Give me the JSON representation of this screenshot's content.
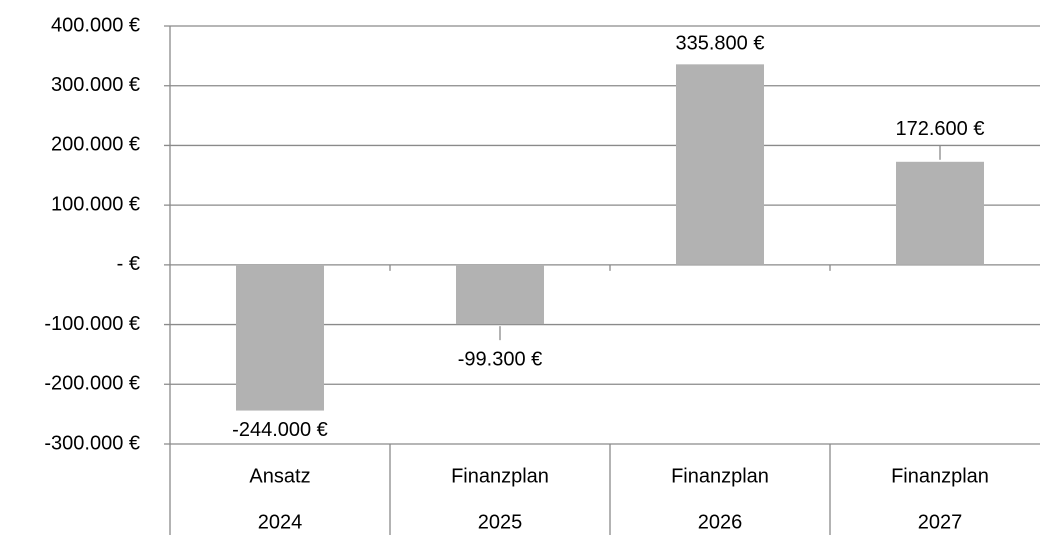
{
  "chart_data": {
    "type": "bar",
    "categories": [
      [
        "Ansatz",
        "2024"
      ],
      [
        "Finanzplan",
        "2025"
      ],
      [
        "Finanzplan",
        "2026"
      ],
      [
        "Finanzplan",
        "2027"
      ]
    ],
    "values": [
      -244000,
      -99300,
      335800,
      172600
    ],
    "value_labels": [
      "-244.000 €",
      "-99.300 €",
      "335.800 €",
      "172.600 €"
    ],
    "color": "#b2b2b2",
    "ylim": [
      -300000,
      400000
    ],
    "yticks": [
      {
        "value": -300000,
        "label": "-300.000 €"
      },
      {
        "value": -200000,
        "label": "-200.000 €"
      },
      {
        "value": -100000,
        "label": "-100.000 €"
      },
      {
        "value": 0,
        "label": "- €"
      },
      {
        "value": 100000,
        "label": "100.000 €"
      },
      {
        "value": 200000,
        "label": "200.000 €"
      },
      {
        "value": 300000,
        "label": "300.000 €"
      },
      {
        "value": 400000,
        "label": "400.000 €"
      }
    ],
    "grid": true
  }
}
